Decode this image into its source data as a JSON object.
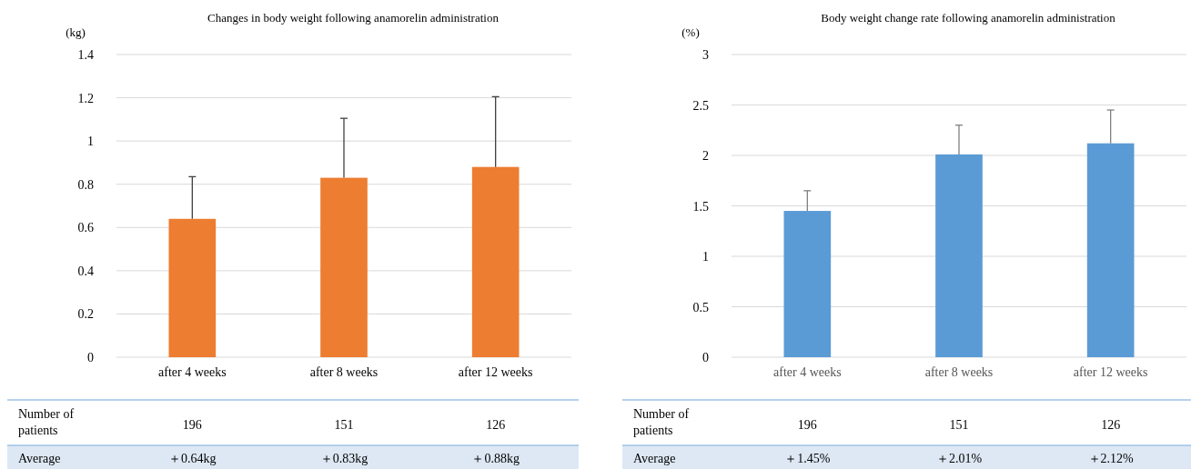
{
  "chart_data": [
    {
      "type": "bar",
      "title": "Changes in body weight following anamorelin administration",
      "ylabel": "(kg)",
      "categories": [
        "after 4 weeks",
        "after 8 weeks",
        "after 12 weeks"
      ],
      "values": [
        0.64,
        0.83,
        0.88
      ],
      "errors": [
        [
          0.64,
          0.835
        ],
        [
          0.83,
          1.105
        ],
        [
          0.88,
          1.205
        ]
      ],
      "color": "#ed7d31",
      "ylim": [
        0,
        1.4
      ],
      "yticks": [
        0,
        0.2,
        0.4,
        0.6,
        0.8,
        1,
        1.2,
        1.4
      ],
      "grid": "y",
      "value_labels": [
        "＋0.64kg",
        "＋0.83kg",
        "＋0.88kg"
      ],
      "annotations": [
        "Number of patients",
        "196",
        "151",
        "126",
        "Average"
      ]
    },
    {
      "type": "bar",
      "title": "Body weight change rate following anamorelin administration",
      "ylabel": "(%)",
      "categories": [
        "after 4 weeks",
        "after 8 weeks",
        "after 12 weeks"
      ],
      "values": [
        1.45,
        2.01,
        2.12
      ],
      "errors": [
        [
          1.45,
          1.65
        ],
        [
          2.01,
          2.3
        ],
        [
          2.12,
          2.45
        ]
      ],
      "color": "#5b9bd5",
      "ylim": [
        0,
        3
      ],
      "yticks": [
        0,
        0.5,
        1,
        1.5,
        2,
        2.5,
        3
      ],
      "grid": "y",
      "value_labels": [
        "＋1.45%",
        "＋2.01%",
        "＋2.12%"
      ],
      "annotations": [
        "Number of patients",
        "196",
        "151",
        "126",
        "Average"
      ]
    }
  ]
}
